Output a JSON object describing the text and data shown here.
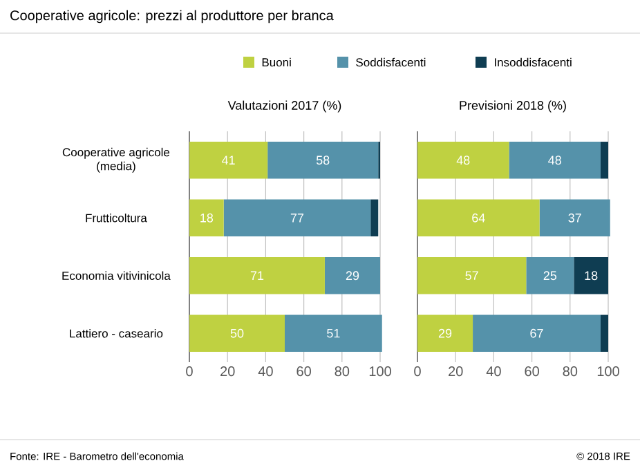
{
  "chart_data": [
    {
      "type": "bar",
      "orientation": "horizontal",
      "stacked": true,
      "title": "Cooperative agricole: prezzi al produttore per branca",
      "subtitle": "Valutazioni 2017 (%)",
      "categories": [
        "Cooperative agricole (media)",
        "Frutticoltura",
        "Economia vitivinicola",
        "Lattiero - caseario"
      ],
      "xlim": [
        0,
        102
      ],
      "xticks": [
        0,
        20,
        40,
        60,
        80,
        100
      ],
      "grid": "x",
      "legend": "top",
      "series": [
        {
          "name": "Buoni",
          "color": "#bfd141",
          "values": [
            41,
            18,
            71,
            50
          ],
          "value_labels": [
            "41",
            "18",
            "71",
            "50"
          ]
        },
        {
          "name": "Soddisfacenti",
          "color": "#5592aa",
          "values": [
            58,
            77,
            29,
            51
          ],
          "value_labels": [
            "58",
            "77",
            "29",
            "51"
          ]
        },
        {
          "name": "Insoddisfacenti",
          "color": "#0f3d52",
          "values": [
            1,
            4,
            0,
            0
          ],
          "value_labels": [
            null,
            null,
            null,
            null
          ]
        }
      ],
      "annotations": [
        "Fonte: IRE - Barometro dell'economia",
        "© 2018 IRE"
      ]
    },
    {
      "type": "bar",
      "orientation": "horizontal",
      "stacked": true,
      "subtitle": "Previsioni 2018 (%)",
      "categories": [
        null,
        null,
        null,
        null
      ],
      "tick_labels": "x",
      "xlim": [
        0,
        102
      ],
      "xticks": [
        0,
        20,
        40,
        60,
        80,
        100
      ],
      "grid": "x",
      "series": [
        {
          "color": "#bfd141",
          "values": [
            48,
            64,
            57,
            29
          ],
          "value_labels": [
            "48",
            "64",
            "57",
            "29"
          ]
        },
        {
          "color": "#5592aa",
          "values": [
            48,
            37,
            25,
            67
          ],
          "value_labels": [
            "48",
            "37",
            "25",
            "67"
          ]
        },
        {
          "color": "#0f3d52",
          "values": [
            4,
            0,
            18,
            4
          ],
          "value_labels": [
            null,
            null,
            "18",
            null
          ]
        }
      ]
    }
  ]
}
